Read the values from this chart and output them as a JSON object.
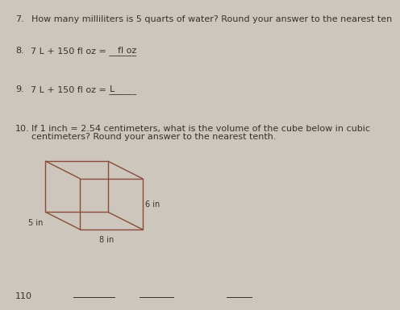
{
  "bg_color": "#cdc6bc",
  "text_color": "#3a3028",
  "page_number": "110",
  "q7_number": "7.",
  "q7_text": "How many milliliters is 5 quarts of water? Round your answer to the nearest ten",
  "q8_number": "8.",
  "q8_text1": "7 L + 150 fl oz = ______",
  "q8_text2": "fl oz",
  "q9_number": "9.",
  "q9_text1": "7 L + 150 fl oz = ______",
  "q9_text2": "L",
  "q10_number": "10.",
  "q10_line1": "If 1 inch = 2.54 centimeters, what is the volume of the cube below in cubic",
  "q10_line2": "centimeters? Round your answer to the nearest tenth.",
  "cube_dim_right": "6 in",
  "cube_dim_left": "5 in",
  "cube_dim_bottom": "8 in",
  "cube_color": "#8B4A3A",
  "font_size_q": 8.0,
  "font_size_label": 7.0,
  "font_size_small": 7.5
}
